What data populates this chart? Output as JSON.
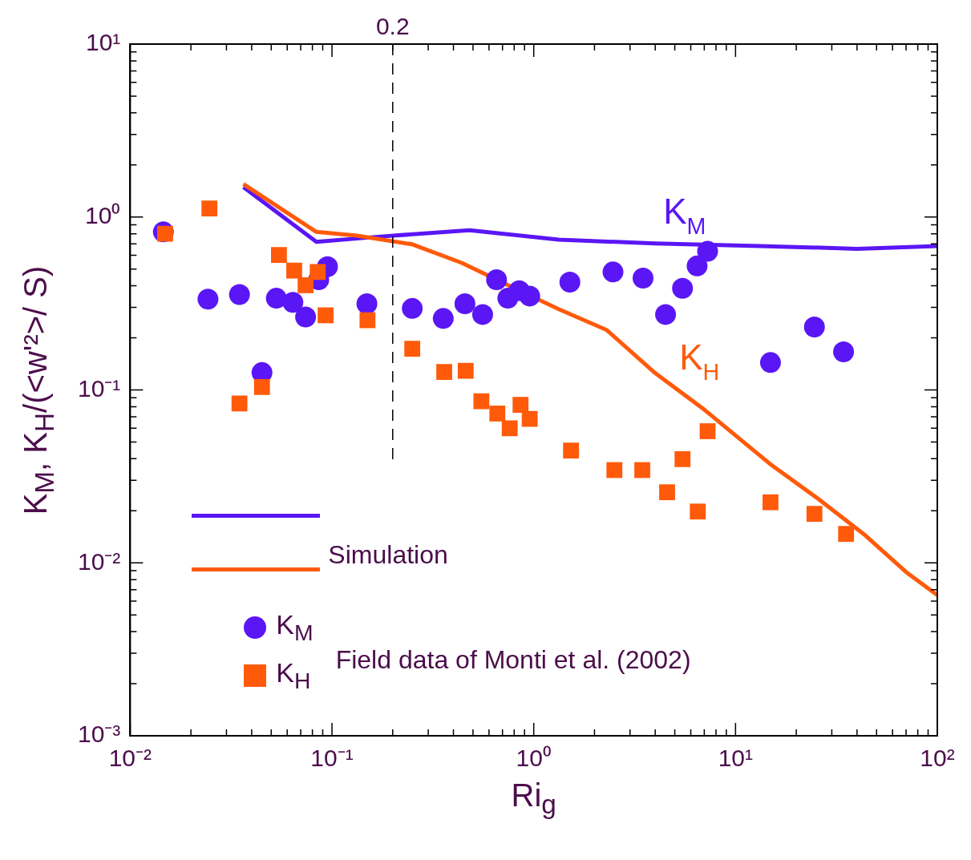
{
  "chart_data": {
    "type": "scatter",
    "xlabel": "Ri$_{g}$",
    "ylabel": "K$_{M}$, K$_{H}$/(<w'²>/ S)",
    "log": "xy",
    "grid": false,
    "legend": "bottom left",
    "xlim": [
      0.01,
      100
    ],
    "ylim": [
      0.001,
      10
    ],
    "xticks": [
      {
        "value": 0.01,
        "label": "10⁻²"
      },
      {
        "value": 0.02,
        "label": null
      },
      {
        "value": 0.03,
        "label": null
      },
      {
        "value": 0.04,
        "label": null
      },
      {
        "value": 0.05,
        "label": null
      },
      {
        "value": 0.06,
        "label": null
      },
      {
        "value": 0.07,
        "label": null
      },
      {
        "value": 0.08,
        "label": null
      },
      {
        "value": 0.09,
        "label": null
      },
      {
        "value": 0.1,
        "label": "10⁻¹"
      },
      {
        "value": 0.2,
        "label": null
      },
      {
        "value": 0.3,
        "label": null
      },
      {
        "value": 0.4,
        "label": null
      },
      {
        "value": 0.5,
        "label": null
      },
      {
        "value": 0.6,
        "label": null
      },
      {
        "value": 0.7,
        "label": null
      },
      {
        "value": 0.8,
        "label": null
      },
      {
        "value": 0.9,
        "label": null
      },
      {
        "value": 1,
        "label": "10⁰"
      },
      {
        "value": 2,
        "label": null
      },
      {
        "value": 3,
        "label": null
      },
      {
        "value": 4,
        "label": null
      },
      {
        "value": 5,
        "label": null
      },
      {
        "value": 6,
        "label": null
      },
      {
        "value": 7,
        "label": null
      },
      {
        "value": 8,
        "label": null
      },
      {
        "value": 9,
        "label": null
      },
      {
        "value": 10,
        "label": "10¹"
      },
      {
        "value": 20,
        "label": null
      },
      {
        "value": 30,
        "label": null
      },
      {
        "value": 40,
        "label": null
      },
      {
        "value": 50,
        "label": null
      },
      {
        "value": 60,
        "label": null
      },
      {
        "value": 70,
        "label": null
      },
      {
        "value": 80,
        "label": null
      },
      {
        "value": 90,
        "label": null
      },
      {
        "value": 100,
        "label": "10²"
      }
    ],
    "yticks": [
      {
        "value": 0.001,
        "label": "10⁻³"
      },
      {
        "value": 0.002,
        "label": null
      },
      {
        "value": 0.003,
        "label": null
      },
      {
        "value": 0.004,
        "label": null
      },
      {
        "value": 0.005,
        "label": null
      },
      {
        "value": 0.006,
        "label": null
      },
      {
        "value": 0.007,
        "label": null
      },
      {
        "value": 0.008,
        "label": null
      },
      {
        "value": 0.009,
        "label": null
      },
      {
        "value": 0.01,
        "label": "10⁻²"
      },
      {
        "value": 0.02,
        "label": null
      },
      {
        "value": 0.03,
        "label": null
      },
      {
        "value": 0.04,
        "label": null
      },
      {
        "value": 0.05,
        "label": null
      },
      {
        "value": 0.06,
        "label": null
      },
      {
        "value": 0.07,
        "label": null
      },
      {
        "value": 0.08,
        "label": null
      },
      {
        "value": 0.09,
        "label": null
      },
      {
        "value": 0.1,
        "label": "10⁻¹"
      },
      {
        "value": 0.2,
        "label": null
      },
      {
        "value": 0.3,
        "label": null
      },
      {
        "value": 0.4,
        "label": null
      },
      {
        "value": 0.5,
        "label": null
      },
      {
        "value": 0.6,
        "label": null
      },
      {
        "value": 0.7,
        "label": null
      },
      {
        "value": 0.8,
        "label": null
      },
      {
        "value": 0.9,
        "label": null
      },
      {
        "value": 1,
        "label": "10⁰"
      },
      {
        "value": 2,
        "label": null
      },
      {
        "value": 3,
        "label": null
      },
      {
        "value": 4,
        "label": null
      },
      {
        "value": 5,
        "label": null
      },
      {
        "value": 6,
        "label": null
      },
      {
        "value": 7,
        "label": null
      },
      {
        "value": 8,
        "label": null
      },
      {
        "value": 9,
        "label": null
      },
      {
        "value": 10,
        "label": "10¹"
      }
    ],
    "ref_lines": [
      {
        "axis": "x",
        "value": 0.2,
        "label": "0.2",
        "color": "#000000",
        "line_style": "dashed"
      }
    ],
    "annotations": [
      "Simulation",
      "Field data of Monti et al. (2002)"
    ],
    "series": [
      {
        "name": "K$_{M}$",
        "type": "line",
        "color": "#5b16f5",
        "x": [
          0.0364,
          0.0837,
          0.174,
          0.48,
          1.33,
          4.0,
          13.2,
          40,
          100
        ],
        "values": [
          1.49,
          0.718,
          0.771,
          0.838,
          0.74,
          0.703,
          0.68,
          0.655,
          0.68
        ]
      },
      {
        "name": "K$_{H}$",
        "type": "line",
        "color": "#ff5a0a",
        "x": [
          0.0364,
          0.0837,
          0.133,
          0.25,
          0.44,
          0.76,
          1.33,
          2.3,
          4.0,
          7.0,
          14.8,
          25.5,
          44,
          70,
          100
        ],
        "values": [
          1.55,
          0.82,
          0.78,
          0.695,
          0.543,
          0.399,
          0.293,
          0.222,
          0.125,
          0.0769,
          0.0374,
          0.0236,
          0.0144,
          0.00885,
          0.0065
        ]
      },
      {
        "name": "K$_{M}$",
        "type": "scatter",
        "marker": "circle",
        "color": "#5b16f5",
        "x": [
          0.0146,
          0.0243,
          0.0348,
          0.045,
          0.053,
          0.064,
          0.074,
          0.086,
          0.095,
          0.149,
          0.25,
          0.356,
          0.456,
          0.558,
          0.654,
          0.744,
          0.847,
          0.955,
          1.51,
          2.47,
          3.48,
          4.5,
          5.46,
          6.45,
          7.27,
          14.9,
          24.6,
          34.3
        ],
        "values": [
          0.82,
          0.335,
          0.356,
          0.126,
          0.339,
          0.321,
          0.264,
          0.434,
          0.516,
          0.315,
          0.296,
          0.259,
          0.315,
          0.273,
          0.434,
          0.339,
          0.375,
          0.349,
          0.42,
          0.481,
          0.443,
          0.273,
          0.387,
          0.521,
          0.634,
          0.144,
          0.231,
          0.166
        ]
      },
      {
        "name": "K$_{H}$",
        "type": "scatter",
        "marker": "square",
        "color": "#ff5a0a",
        "x": [
          0.0149,
          0.0247,
          0.0348,
          0.045,
          0.0546,
          0.065,
          0.074,
          0.085,
          0.093,
          0.15,
          0.25,
          0.36,
          0.46,
          0.55,
          0.66,
          0.76,
          0.86,
          0.955,
          1.53,
          2.51,
          3.45,
          4.58,
          5.46,
          6.5,
          7.27,
          14.9,
          24.6,
          35.3
        ],
        "values": [
          0.8,
          1.12,
          0.0835,
          0.104,
          0.603,
          0.49,
          0.403,
          0.481,
          0.27,
          0.253,
          0.173,
          0.127,
          0.129,
          0.086,
          0.073,
          0.06,
          0.082,
          0.068,
          0.0446,
          0.0344,
          0.0344,
          0.0256,
          0.0398,
          0.0198,
          0.0577,
          0.0224,
          0.0192,
          0.0147
        ]
      }
    ]
  }
}
